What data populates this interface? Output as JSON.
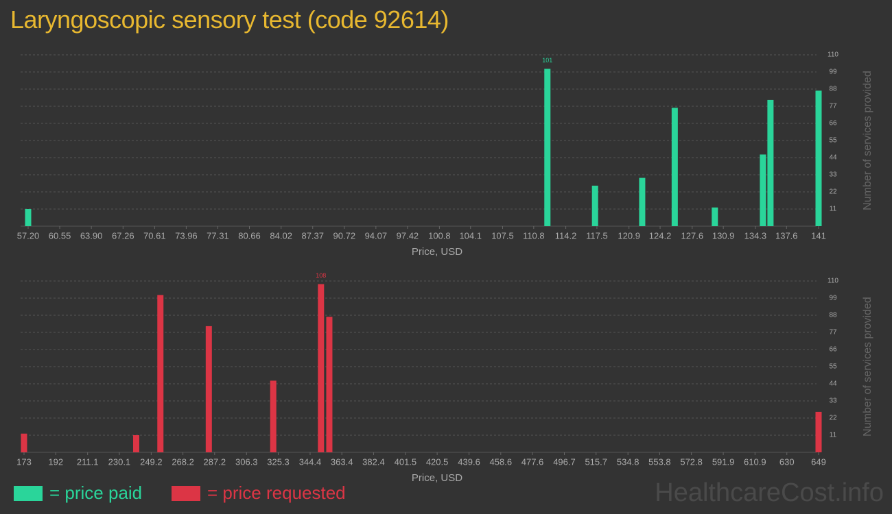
{
  "title": "Laryngoscopic sensory test (code 92614)",
  "watermark": "HealthcareCost.info",
  "chart_data": [
    {
      "type": "bar",
      "x_label": "Price, USD",
      "y_label": "Number of services provided",
      "x": [
        57.2,
        112.25,
        117.3,
        122.3,
        125.75,
        130.0,
        135.1,
        135.9,
        141
      ],
      "series": [
        {
          "name": "= price paid",
          "color": "#2ad59a",
          "values": [
            11,
            101,
            26,
            31,
            76,
            12,
            46,
            81,
            87
          ]
        }
      ],
      "xlim": [
        57.2,
        141
      ],
      "xticks": [
        {
          "value": 57.2,
          "label": "57.20"
        },
        60.55,
        {
          "value": 63.9,
          "label": "63.90"
        },
        67.26,
        70.61,
        73.96,
        77.31,
        80.66,
        84.02,
        87.37,
        90.72,
        94.07,
        97.42,
        100.8,
        104.1,
        107.5,
        110.8,
        114.2,
        117.5,
        120.9,
        124.2,
        127.6,
        130.9,
        134.3,
        137.6,
        141
      ],
      "ylim": [
        0,
        110
      ],
      "yticks": [
        11,
        22,
        33,
        44,
        55,
        66,
        77,
        88,
        99,
        110
      ],
      "grid": true
    },
    {
      "type": "bar",
      "x_label": "Price, USD",
      "y_label": "Number of services provided",
      "x": [
        173,
        240.2,
        254.7,
        283.7,
        322.3,
        350.9,
        355.9,
        649
      ],
      "series": [
        {
          "name": "= price requested",
          "color": "#dc3545",
          "values": [
            12,
            11,
            101,
            81,
            46,
            108,
            87,
            26
          ]
        }
      ],
      "xlim": [
        173,
        649
      ],
      "xticks": [
        173,
        192,
        211.1,
        230.1,
        249.2,
        268.2,
        287.2,
        306.3,
        325.3,
        344.4,
        363.4,
        382.4,
        401.5,
        420.5,
        439.6,
        458.6,
        477.6,
        496.7,
        515.7,
        534.8,
        553.8,
        572.8,
        591.9,
        610.9,
        630,
        649
      ],
      "ylim": [
        0,
        110
      ],
      "yticks": [
        11,
        22,
        33,
        44,
        55,
        66,
        77,
        88,
        99,
        110
      ],
      "grid": true
    }
  ]
}
